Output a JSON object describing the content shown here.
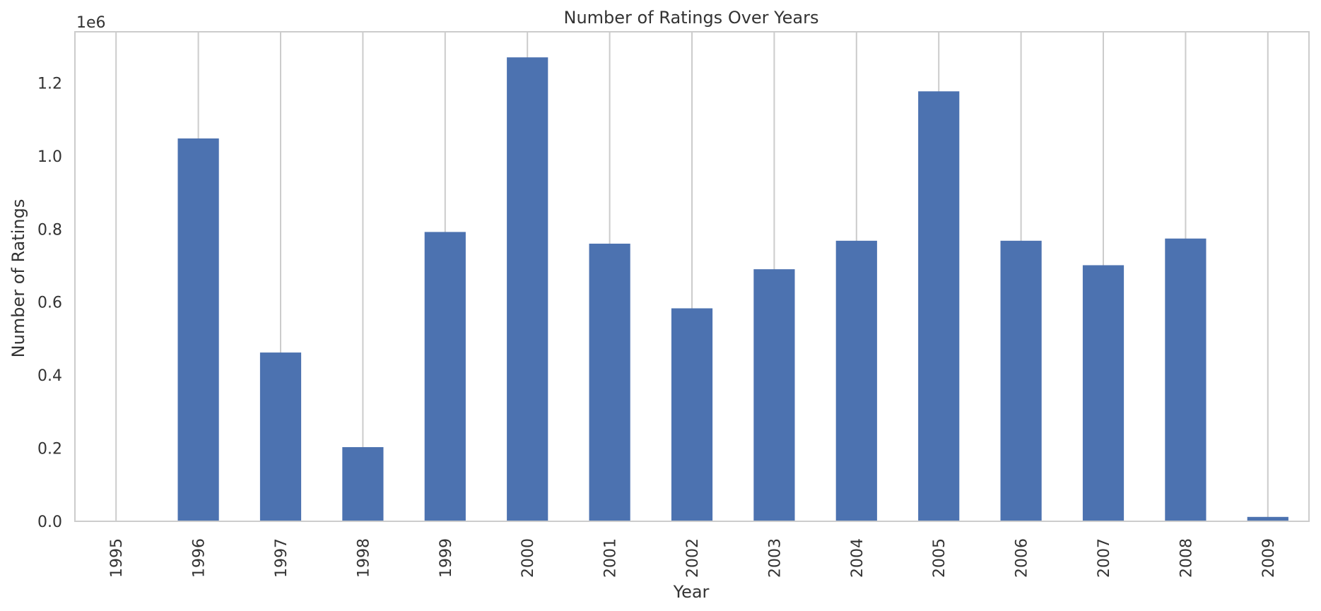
{
  "chart_data": {
    "type": "bar",
    "title": "Number of Ratings Over Years",
    "xlabel": "Year",
    "ylabel": "Number of Ratings",
    "offset_label": "1e6",
    "categories": [
      "1995",
      "1996",
      "1997",
      "1998",
      "1999",
      "2000",
      "2001",
      "2002",
      "2003",
      "2004",
      "2005",
      "2006",
      "2007",
      "2008",
      "2009"
    ],
    "values": [
      0,
      1048000,
      462000,
      203000,
      792000,
      1270000,
      760000,
      583000,
      690000,
      768000,
      1177000,
      768000,
      701000,
      774000,
      12000
    ],
    "ylim": [
      0,
      1340000
    ],
    "yticks": [
      0,
      200000,
      400000,
      600000,
      800000,
      1000000,
      1200000
    ],
    "ytick_labels": [
      "0.0",
      "0.2",
      "0.4",
      "0.6",
      "0.8",
      "1.0",
      "1.2"
    ],
    "grid": "vertical",
    "legend": "none",
    "bar_color": "#4c72b0",
    "grid_color": "#cccccc",
    "frame_color": "#cccccc",
    "text_color": "#333333"
  }
}
